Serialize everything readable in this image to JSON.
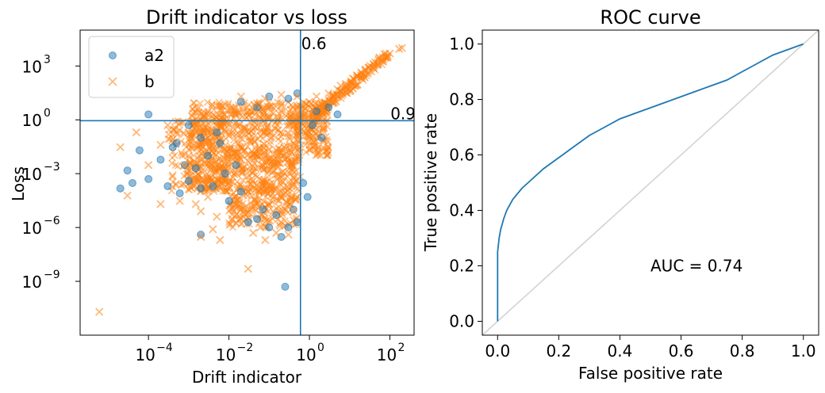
{
  "chart_data": [
    {
      "type": "scatter",
      "title": "Drift indicator vs loss",
      "xlabel": "Drift indicator",
      "ylabel": "Loss",
      "xscale": "log",
      "yscale": "log",
      "xlim": [
        2e-06,
        400
      ],
      "ylim": [
        1e-12,
        100000
      ],
      "xticks": [
        {
          "value": 0.0001,
          "base": "10",
          "exp": "−4"
        },
        {
          "value": 0.01,
          "base": "10",
          "exp": "−2"
        },
        {
          "value": 1,
          "base": "10",
          "exp": "0"
        },
        {
          "value": 100,
          "base": "10",
          "exp": "2"
        }
      ],
      "yticks": [
        {
          "value": 1e-09,
          "base": "10",
          "exp": "−9"
        },
        {
          "value": 1e-06,
          "base": "10",
          "exp": "−6"
        },
        {
          "value": 0.001,
          "base": "10",
          "exp": "−3"
        },
        {
          "value": 1,
          "base": "10",
          "exp": "0"
        },
        {
          "value": 1000,
          "base": "10",
          "exp": "3"
        }
      ],
      "thresholds": [
        {
          "orientation": "vertical",
          "value": 0.6,
          "label": "0.6"
        },
        {
          "orientation": "horizontal",
          "value": 0.9,
          "label": "0.9"
        }
      ],
      "legend": {
        "position": "top-left"
      },
      "series": [
        {
          "name": "a2",
          "marker": "circle",
          "color": "#1f77b4",
          "points": [
            [
              0.0001,
              2
            ],
            [
              2e-05,
              0.00015
            ],
            [
              3e-05,
              0.0015
            ],
            [
              4e-05,
              0.0003
            ],
            [
              6e-05,
              0.02
            ],
            [
              0.0001,
              0.0005
            ],
            [
              0.0002,
              0.006
            ],
            [
              0.0003,
              0.0002
            ],
            [
              0.0004,
              0.03
            ],
            [
              0.0006,
              8e-05
            ],
            [
              0.0008,
              0.003
            ],
            [
              0.001,
              0.0004
            ],
            [
              0.0015,
              0.002
            ],
            [
              0.002,
              0.00015
            ],
            [
              0.002,
              4e-07
            ],
            [
              0.003,
              0.01
            ],
            [
              0.004,
              0.0002
            ],
            [
              0.006,
              0.05
            ],
            [
              0.008,
              0.001
            ],
            [
              0.01,
              3e-05
            ],
            [
              0.015,
              0.003
            ],
            [
              0.02,
              0.0001
            ],
            [
              0.03,
              2e-06
            ],
            [
              0.05,
              3e-06
            ],
            [
              0.07,
              1e-05
            ],
            [
              0.1,
              1e-06
            ],
            [
              0.15,
              5e-06
            ],
            [
              0.2,
              3e-07
            ],
            [
              0.25,
              5e-10
            ],
            [
              0.3,
              1e-06
            ],
            [
              0.4,
              1e-05
            ],
            [
              0.5,
              2e-06
            ],
            [
              0.7,
              0.0003
            ],
            [
              0.9,
              5e-05
            ],
            [
              1.2,
              0.5
            ],
            [
              1.5,
              3
            ],
            [
              2,
              0.1
            ],
            [
              3,
              5
            ],
            [
              5,
              2
            ],
            [
              0.02,
              10
            ],
            [
              0.05,
              5
            ],
            [
              0.1,
              20
            ],
            [
              0.3,
              15
            ],
            [
              0.5,
              30
            ],
            [
              0.002,
              0.1
            ],
            [
              0.005,
              0.2
            ],
            [
              0.0005,
              0.05
            ],
            [
              0.001,
              0.5
            ]
          ]
        },
        {
          "name": "b",
          "marker": "x",
          "color": "#ff7f0e",
          "points": [
            [
              6e-06,
              2e-11
            ],
            [
              2e-05,
              0.03
            ],
            [
              3e-05,
              6e-05
            ],
            [
              5e-05,
              0.2
            ],
            [
              0.0001,
              0.003
            ],
            [
              0.0002,
              0.04
            ],
            [
              0.0002,
              2e-05
            ],
            [
              0.0003,
              0.5
            ],
            [
              0.0004,
              0.0008
            ],
            [
              0.0006,
              3e-05
            ],
            [
              0.001,
              0.2
            ],
            [
              0.0015,
              2e-05
            ],
            [
              0.002,
              8e-06
            ],
            [
              0.002,
              3e-07
            ],
            [
              0.003,
              5e-05
            ],
            [
              0.004,
              8e-07
            ],
            [
              0.005,
              4e-06
            ],
            [
              0.006,
              2e-07
            ],
            [
              0.01,
              0.5
            ],
            [
              0.01,
              0.0003
            ],
            [
              0.012,
              3e-06
            ],
            [
              0.015,
              2
            ],
            [
              0.02,
              1e-05
            ],
            [
              0.025,
              6e-06
            ],
            [
              0.03,
              5e-09
            ],
            [
              0.04,
              5e-07
            ],
            [
              0.05,
              8
            ],
            [
              0.06,
              1e-06
            ],
            [
              0.08,
              2e-07
            ],
            [
              0.1,
              2e-05
            ],
            [
              0.15,
              5e-07
            ],
            [
              0.2,
              2e-06
            ],
            [
              0.3,
              4e-07
            ],
            [
              0.4,
              8e-06
            ],
            [
              0.5,
              5e-05
            ],
            [
              0.02,
              20
            ],
            [
              0.08,
              15
            ],
            [
              0.2,
              25
            ],
            [
              0.5,
              20
            ],
            [
              1,
              10
            ],
            [
              1.5,
              20
            ],
            [
              3,
              30
            ],
            [
              5,
              50
            ],
            [
              8,
              100
            ],
            [
              12,
              200
            ],
            [
              20,
              400
            ],
            [
              30,
              800
            ],
            [
              50,
              1500
            ],
            [
              80,
              3000
            ],
            [
              100,
              5000
            ],
            [
              200,
              10000
            ],
            [
              170,
              9000
            ],
            [
              40,
              1200
            ],
            [
              25,
              600
            ],
            [
              15,
              300
            ],
            [
              6,
              80
            ],
            [
              4,
              25
            ],
            [
              2,
              8
            ],
            [
              1.2,
              4
            ],
            [
              0.7,
              1.5
            ],
            [
              10,
              40
            ],
            [
              2.5,
              3
            ],
            [
              0.001,
              0.01
            ],
            [
              0.003,
              0.1
            ],
            [
              0.0005,
              0.2
            ],
            [
              0.0008,
              0.003
            ],
            [
              0.03,
              0.0001
            ],
            [
              0.005,
              0.0005
            ]
          ]
        }
      ],
      "dense_cloud": {
        "color": "#ff7f0e",
        "core": {
          "x": [
            0.001,
            0.6
          ],
          "y": [
            0.0001,
            10
          ]
        },
        "spread": [
          {
            "x": [
              0.01,
              0.5
            ],
            "y": [
              1e-06,
              0.0001
            ]
          },
          {
            "x": [
              0.0003,
              0.01
            ],
            "y": [
              0.0001,
              1
            ]
          },
          {
            "x": [
              0.5,
              3
            ],
            "y": [
              0.01,
              10
            ]
          },
          {
            "x": [
              1,
              100
            ],
            "y": [
              1,
              5000
            ]
          }
        ]
      }
    },
    {
      "type": "line",
      "title": "ROC curve",
      "xlabel": "False positive rate",
      "ylabel": "True positive rate",
      "xlim": [
        -0.05,
        1.05
      ],
      "ylim": [
        -0.05,
        1.05
      ],
      "xticks": [
        "0.0",
        "0.2",
        "0.4",
        "0.6",
        "0.8",
        "1.0"
      ],
      "yticks": [
        "0.0",
        "0.2",
        "0.4",
        "0.6",
        "0.8",
        "1.0"
      ],
      "annotation": {
        "text": "AUC = 0.74",
        "x": 0.5,
        "y": 0.2
      },
      "series": [
        {
          "color": "#1f77b4",
          "x": [
            0,
            0,
            0,
            0.005,
            0.01,
            0.02,
            0.03,
            0.05,
            0.08,
            0.1,
            0.15,
            0.2,
            0.25,
            0.3,
            0.35,
            0.4,
            0.45,
            0.5,
            0.55,
            0.6,
            0.65,
            0.7,
            0.75,
            0.8,
            0.85,
            0.9,
            0.95,
            1.0
          ],
          "y": [
            0,
            0.2,
            0.25,
            0.3,
            0.33,
            0.37,
            0.4,
            0.44,
            0.48,
            0.5,
            0.55,
            0.59,
            0.63,
            0.67,
            0.7,
            0.73,
            0.75,
            0.77,
            0.79,
            0.81,
            0.83,
            0.85,
            0.87,
            0.9,
            0.93,
            0.96,
            0.98,
            1.0
          ]
        },
        {
          "color": "#d3d3d3",
          "x": [
            -0.05,
            1.05
          ],
          "y": [
            -0.05,
            1.05
          ]
        }
      ]
    }
  ]
}
